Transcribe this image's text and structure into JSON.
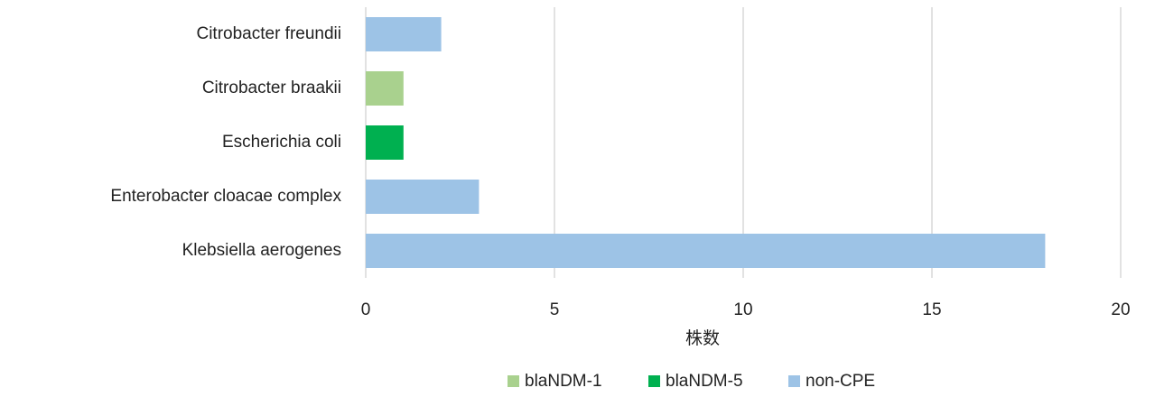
{
  "chart_data": {
    "type": "stacked-bar-horizontal",
    "categories": [
      "Citrobacter freundii",
      "Citrobacter braakii",
      "Escherichia coli",
      "Enterobacter cloacae complex",
      "Klebsiella aerogenes"
    ],
    "series": [
      {
        "name": "blaNDM-1",
        "color": "#a9d18e",
        "values": [
          0,
          1,
          0,
          0,
          0
        ]
      },
      {
        "name": "blaNDM-5",
        "color": "#00b050",
        "values": [
          0,
          0,
          1,
          0,
          0
        ]
      },
      {
        "name": "non-CPE",
        "color": "#9dc3e6",
        "values": [
          2,
          0,
          0,
          3,
          18
        ]
      }
    ],
    "xlabel": "株数",
    "xlim": [
      0,
      20
    ],
    "xticks": [
      0,
      5,
      10,
      15,
      20
    ],
    "grid": true,
    "legend": "bottom"
  }
}
